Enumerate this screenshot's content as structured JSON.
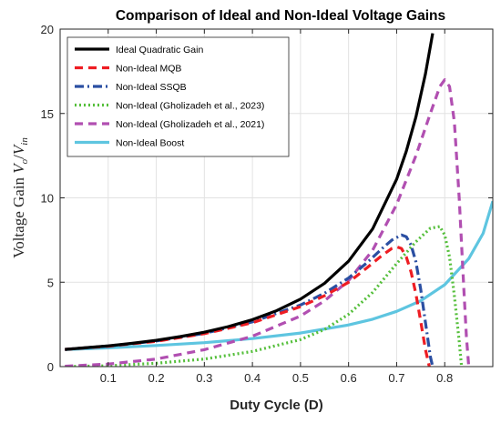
{
  "chart_data": {
    "type": "line",
    "title": "Comparison of Ideal and Non-Ideal Voltage Gains",
    "xlabel": "Duty Cycle (D)",
    "ylabel_main": "Voltage Gain ",
    "ylabel_vo": "V",
    "ylabel_vo_sub": "o",
    "ylabel_slash": "/",
    "ylabel_vin": "V",
    "ylabel_vin_sub": "in",
    "xlim": [
      0,
      0.9
    ],
    "ylim": [
      0,
      20
    ],
    "xticks": [
      0.1,
      0.2,
      0.3,
      0.4,
      0.5,
      0.6,
      0.7,
      0.8
    ],
    "xtick_labels": [
      "0.1",
      "0.2",
      "0.3",
      "0.4",
      "0.5",
      "0.6",
      "0.7",
      "0.8"
    ],
    "yticks": [
      0,
      5,
      10,
      15,
      20
    ],
    "ytick_labels": [
      "0",
      "5",
      "10",
      "15",
      "20"
    ],
    "grid": true,
    "legend_position": "top-left",
    "series": [
      {
        "name": "Ideal Quadratic Gain",
        "color": "#000000",
        "style": "solid",
        "x": [
          0.01,
          0.05,
          0.1,
          0.15,
          0.2,
          0.25,
          0.3,
          0.35,
          0.4,
          0.45,
          0.5,
          0.55,
          0.6,
          0.65,
          0.7,
          0.72,
          0.74,
          0.76,
          0.775
        ],
        "y": [
          1.02,
          1.11,
          1.23,
          1.38,
          1.56,
          1.78,
          2.04,
          2.37,
          2.78,
          3.31,
          4.0,
          4.94,
          6.25,
          8.16,
          11.1,
          12.76,
          14.79,
          17.36,
          19.75
        ]
      },
      {
        "name": "Non-Ideal MQB",
        "color": "#ee1d23",
        "style": "dashed",
        "x": [
          0.01,
          0.1,
          0.2,
          0.3,
          0.4,
          0.5,
          0.55,
          0.6,
          0.64,
          0.67,
          0.69,
          0.7,
          0.71,
          0.72,
          0.73,
          0.74,
          0.75,
          0.76,
          0.768
        ],
        "y": [
          1.02,
          1.21,
          1.5,
          1.95,
          2.6,
          3.55,
          4.2,
          5.0,
          5.9,
          6.6,
          7.0,
          7.1,
          7.0,
          6.5,
          5.6,
          4.3,
          2.7,
          1.0,
          0.0
        ]
      },
      {
        "name": "Non-Ideal SSQB",
        "color": "#2b4fa2",
        "style": "dashdot",
        "x": [
          0.01,
          0.1,
          0.2,
          0.3,
          0.4,
          0.5,
          0.55,
          0.6,
          0.64,
          0.67,
          0.69,
          0.71,
          0.72,
          0.73,
          0.74,
          0.75,
          0.76,
          0.77,
          0.775
        ],
        "y": [
          1.02,
          1.22,
          1.52,
          1.97,
          2.65,
          3.65,
          4.35,
          5.25,
          6.2,
          7.0,
          7.5,
          7.8,
          7.7,
          7.2,
          6.2,
          4.6,
          2.6,
          0.6,
          0.0
        ]
      },
      {
        "name": "Non-Ideal (Gholizadeh et al., 2023)",
        "color": "#55bf3b",
        "style": "dotted",
        "x": [
          0.01,
          0.1,
          0.2,
          0.3,
          0.4,
          0.5,
          0.55,
          0.6,
          0.65,
          0.7,
          0.74,
          0.77,
          0.79,
          0.8,
          0.81,
          0.82,
          0.83,
          0.835
        ],
        "y": [
          0.0,
          0.05,
          0.2,
          0.45,
          0.9,
          1.6,
          2.2,
          3.1,
          4.4,
          6.1,
          7.4,
          8.2,
          8.3,
          7.8,
          6.5,
          4.2,
          1.5,
          0.0
        ]
      },
      {
        "name": "Non-Ideal (Gholizadeh et al., 2021)",
        "color": "#b14fb1",
        "style": "dashed",
        "x": [
          0.01,
          0.1,
          0.2,
          0.3,
          0.4,
          0.5,
          0.55,
          0.6,
          0.65,
          0.7,
          0.74,
          0.77,
          0.79,
          0.8,
          0.81,
          0.82,
          0.83,
          0.84,
          0.845,
          0.85
        ],
        "y": [
          0.02,
          0.15,
          0.45,
          1.0,
          1.8,
          3.0,
          3.9,
          5.1,
          6.9,
          9.6,
          12.5,
          15.0,
          16.6,
          17.0,
          16.6,
          14.5,
          10.0,
          4.5,
          1.8,
          0.0
        ]
      },
      {
        "name": "Non-Ideal Boost",
        "color": "#5ec5e0",
        "style": "solid",
        "x": [
          0.01,
          0.1,
          0.2,
          0.3,
          0.4,
          0.5,
          0.6,
          0.65,
          0.7,
          0.75,
          0.8,
          0.85,
          0.88,
          0.9
        ],
        "y": [
          1.01,
          1.11,
          1.25,
          1.42,
          1.66,
          1.99,
          2.47,
          2.81,
          3.27,
          3.9,
          4.85,
          6.4,
          7.9,
          9.8
        ]
      }
    ]
  }
}
